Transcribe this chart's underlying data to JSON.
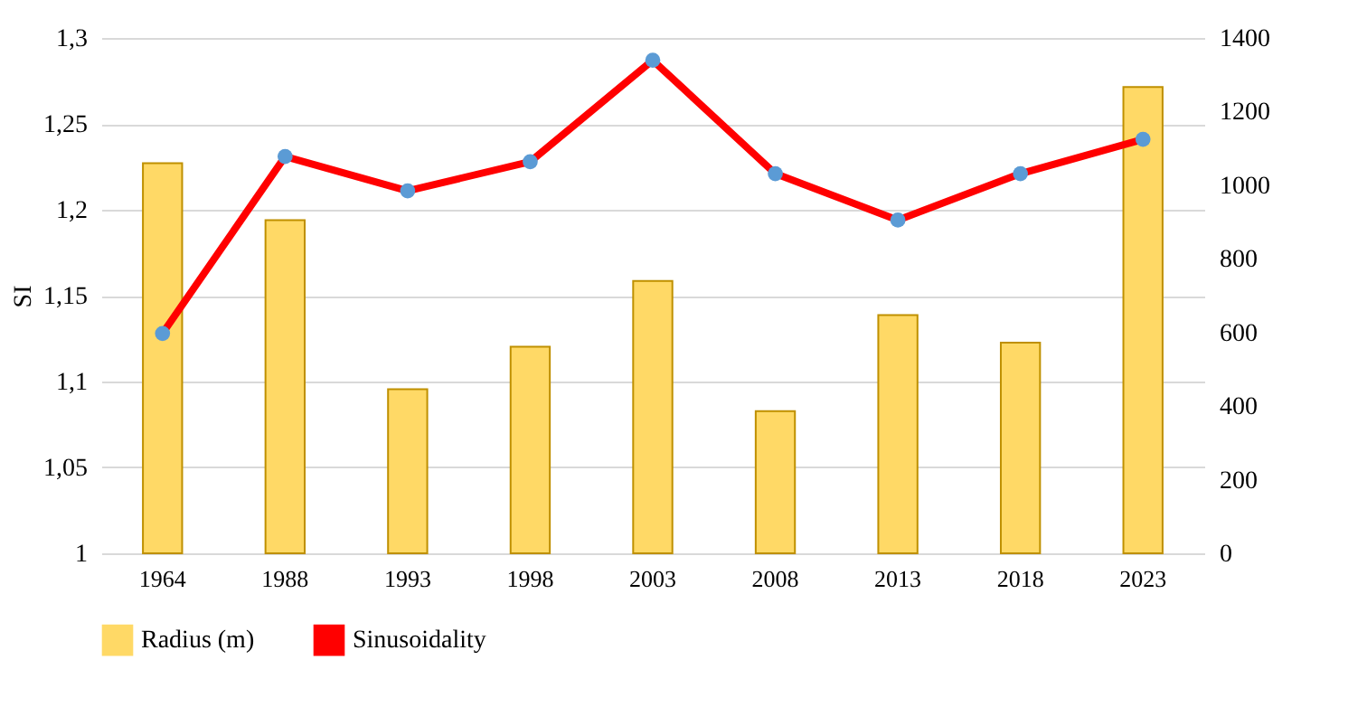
{
  "chart_data": {
    "type": "line",
    "ylabel": "SI",
    "categories": [
      "1964",
      "1988",
      "1993",
      "1998",
      "2003",
      "2008",
      "2013",
      "2018",
      "2023"
    ],
    "series": [
      {
        "name": "Radius (m)",
        "type": "bar",
        "axis": "y2",
        "color": "#ffd966",
        "values": [
          1060,
          905,
          446,
          561,
          740,
          386,
          647,
          572,
          1267
        ]
      },
      {
        "name": "Sinusoidality",
        "color": "#ff0000",
        "values": [
          1.128,
          1.231,
          1.211,
          1.228,
          1.287,
          1.221,
          1.194,
          1.221,
          1.241
        ]
      }
    ],
    "ylim": [
      1,
      1.3
    ],
    "yticks": [
      {
        "value": 1,
        "label": "1"
      },
      {
        "value": 1.05,
        "label": "1,05"
      },
      {
        "value": 1.1,
        "label": "1,1"
      },
      {
        "value": 1.15,
        "label": "1,15"
      },
      {
        "value": 1.2,
        "label": "1,2"
      },
      {
        "value": 1.25,
        "label": "1,25"
      },
      {
        "value": 1.3,
        "label": "1,3"
      }
    ],
    "y2lim": [
      0,
      1400
    ],
    "y2ticks": [
      0,
      200,
      400,
      600,
      800,
      1000,
      1200,
      1400
    ],
    "grid": "y",
    "legend": "bottom",
    "marker": "circle"
  }
}
